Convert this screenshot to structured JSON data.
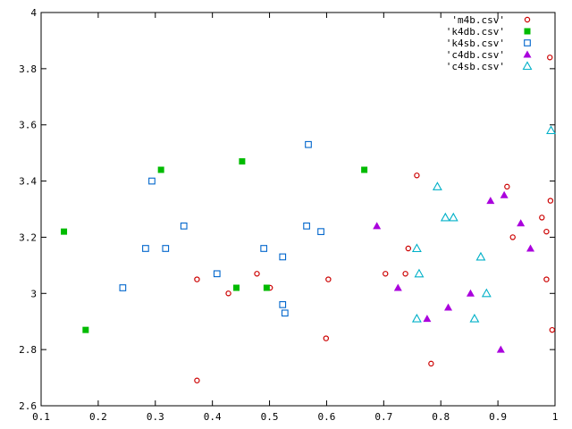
{
  "chart_data": {
    "type": "scatter",
    "title": "",
    "xlabel": "",
    "ylabel": "",
    "xlim": [
      0.1,
      1.0
    ],
    "ylim": [
      2.6,
      4.0
    ],
    "x_ticks": [
      "0.1",
      "0.2",
      "0.3",
      "0.4",
      "0.5",
      "0.6",
      "0.7",
      "0.8",
      "0.9",
      "1"
    ],
    "y_ticks": [
      "2.6",
      "2.8",
      "3",
      "3.2",
      "3.4",
      "3.6",
      "3.8",
      "4"
    ],
    "grid": false,
    "legend_position": "top-right",
    "series": [
      {
        "name": "'m4b.csv'",
        "marker": "open-circle",
        "color": "#cc0000",
        "points": [
          [
            0.373,
            3.05
          ],
          [
            0.373,
            2.69
          ],
          [
            0.428,
            3.0
          ],
          [
            0.478,
            3.07
          ],
          [
            0.501,
            3.02
          ],
          [
            0.599,
            2.84
          ],
          [
            0.603,
            3.05
          ],
          [
            0.703,
            3.07
          ],
          [
            0.738,
            3.07
          ],
          [
            0.743,
            3.16
          ],
          [
            0.758,
            3.42
          ],
          [
            0.783,
            2.75
          ],
          [
            0.916,
            3.38
          ],
          [
            0.926,
            3.2
          ],
          [
            0.977,
            3.27
          ],
          [
            0.985,
            3.05
          ],
          [
            0.985,
            3.22
          ],
          [
            0.991,
            3.84
          ],
          [
            0.992,
            3.33
          ],
          [
            0.995,
            2.87
          ]
        ]
      },
      {
        "name": "'k4db.csv'",
        "marker": "filled-square",
        "color": "#00bb00",
        "points": [
          [
            0.14,
            3.22
          ],
          [
            0.178,
            2.87
          ],
          [
            0.31,
            3.44
          ],
          [
            0.442,
            3.02
          ],
          [
            0.452,
            3.47
          ],
          [
            0.495,
            3.02
          ],
          [
            0.666,
            3.44
          ]
        ]
      },
      {
        "name": "'k4sb.csv'",
        "marker": "open-square",
        "color": "#0066cc",
        "points": [
          [
            0.243,
            3.02
          ],
          [
            0.283,
            3.16
          ],
          [
            0.294,
            3.4
          ],
          [
            0.318,
            3.16
          ],
          [
            0.35,
            3.24
          ],
          [
            0.408,
            3.07
          ],
          [
            0.49,
            3.16
          ],
          [
            0.523,
            2.96
          ],
          [
            0.523,
            3.13
          ],
          [
            0.527,
            2.93
          ],
          [
            0.565,
            3.24
          ],
          [
            0.568,
            3.53
          ],
          [
            0.59,
            3.22
          ]
        ]
      },
      {
        "name": "'c4db.csv'",
        "marker": "filled-triangle",
        "color": "#aa00dd",
        "points": [
          [
            0.688,
            3.24
          ],
          [
            0.725,
            3.02
          ],
          [
            0.776,
            2.91
          ],
          [
            0.813,
            2.95
          ],
          [
            0.852,
            3.0
          ],
          [
            0.887,
            3.33
          ],
          [
            0.905,
            2.8
          ],
          [
            0.911,
            3.35
          ],
          [
            0.94,
            3.25
          ],
          [
            0.957,
            3.16
          ]
        ]
      },
      {
        "name": "'c4sb.csv'",
        "marker": "open-triangle",
        "color": "#00b0c8",
        "points": [
          [
            0.758,
            3.16
          ],
          [
            0.758,
            2.91
          ],
          [
            0.762,
            3.07
          ],
          [
            0.794,
            3.38
          ],
          [
            0.808,
            3.27
          ],
          [
            0.822,
            3.27
          ],
          [
            0.859,
            2.91
          ],
          [
            0.87,
            3.13
          ],
          [
            0.88,
            3.0
          ],
          [
            0.993,
            3.58
          ]
        ]
      }
    ]
  }
}
